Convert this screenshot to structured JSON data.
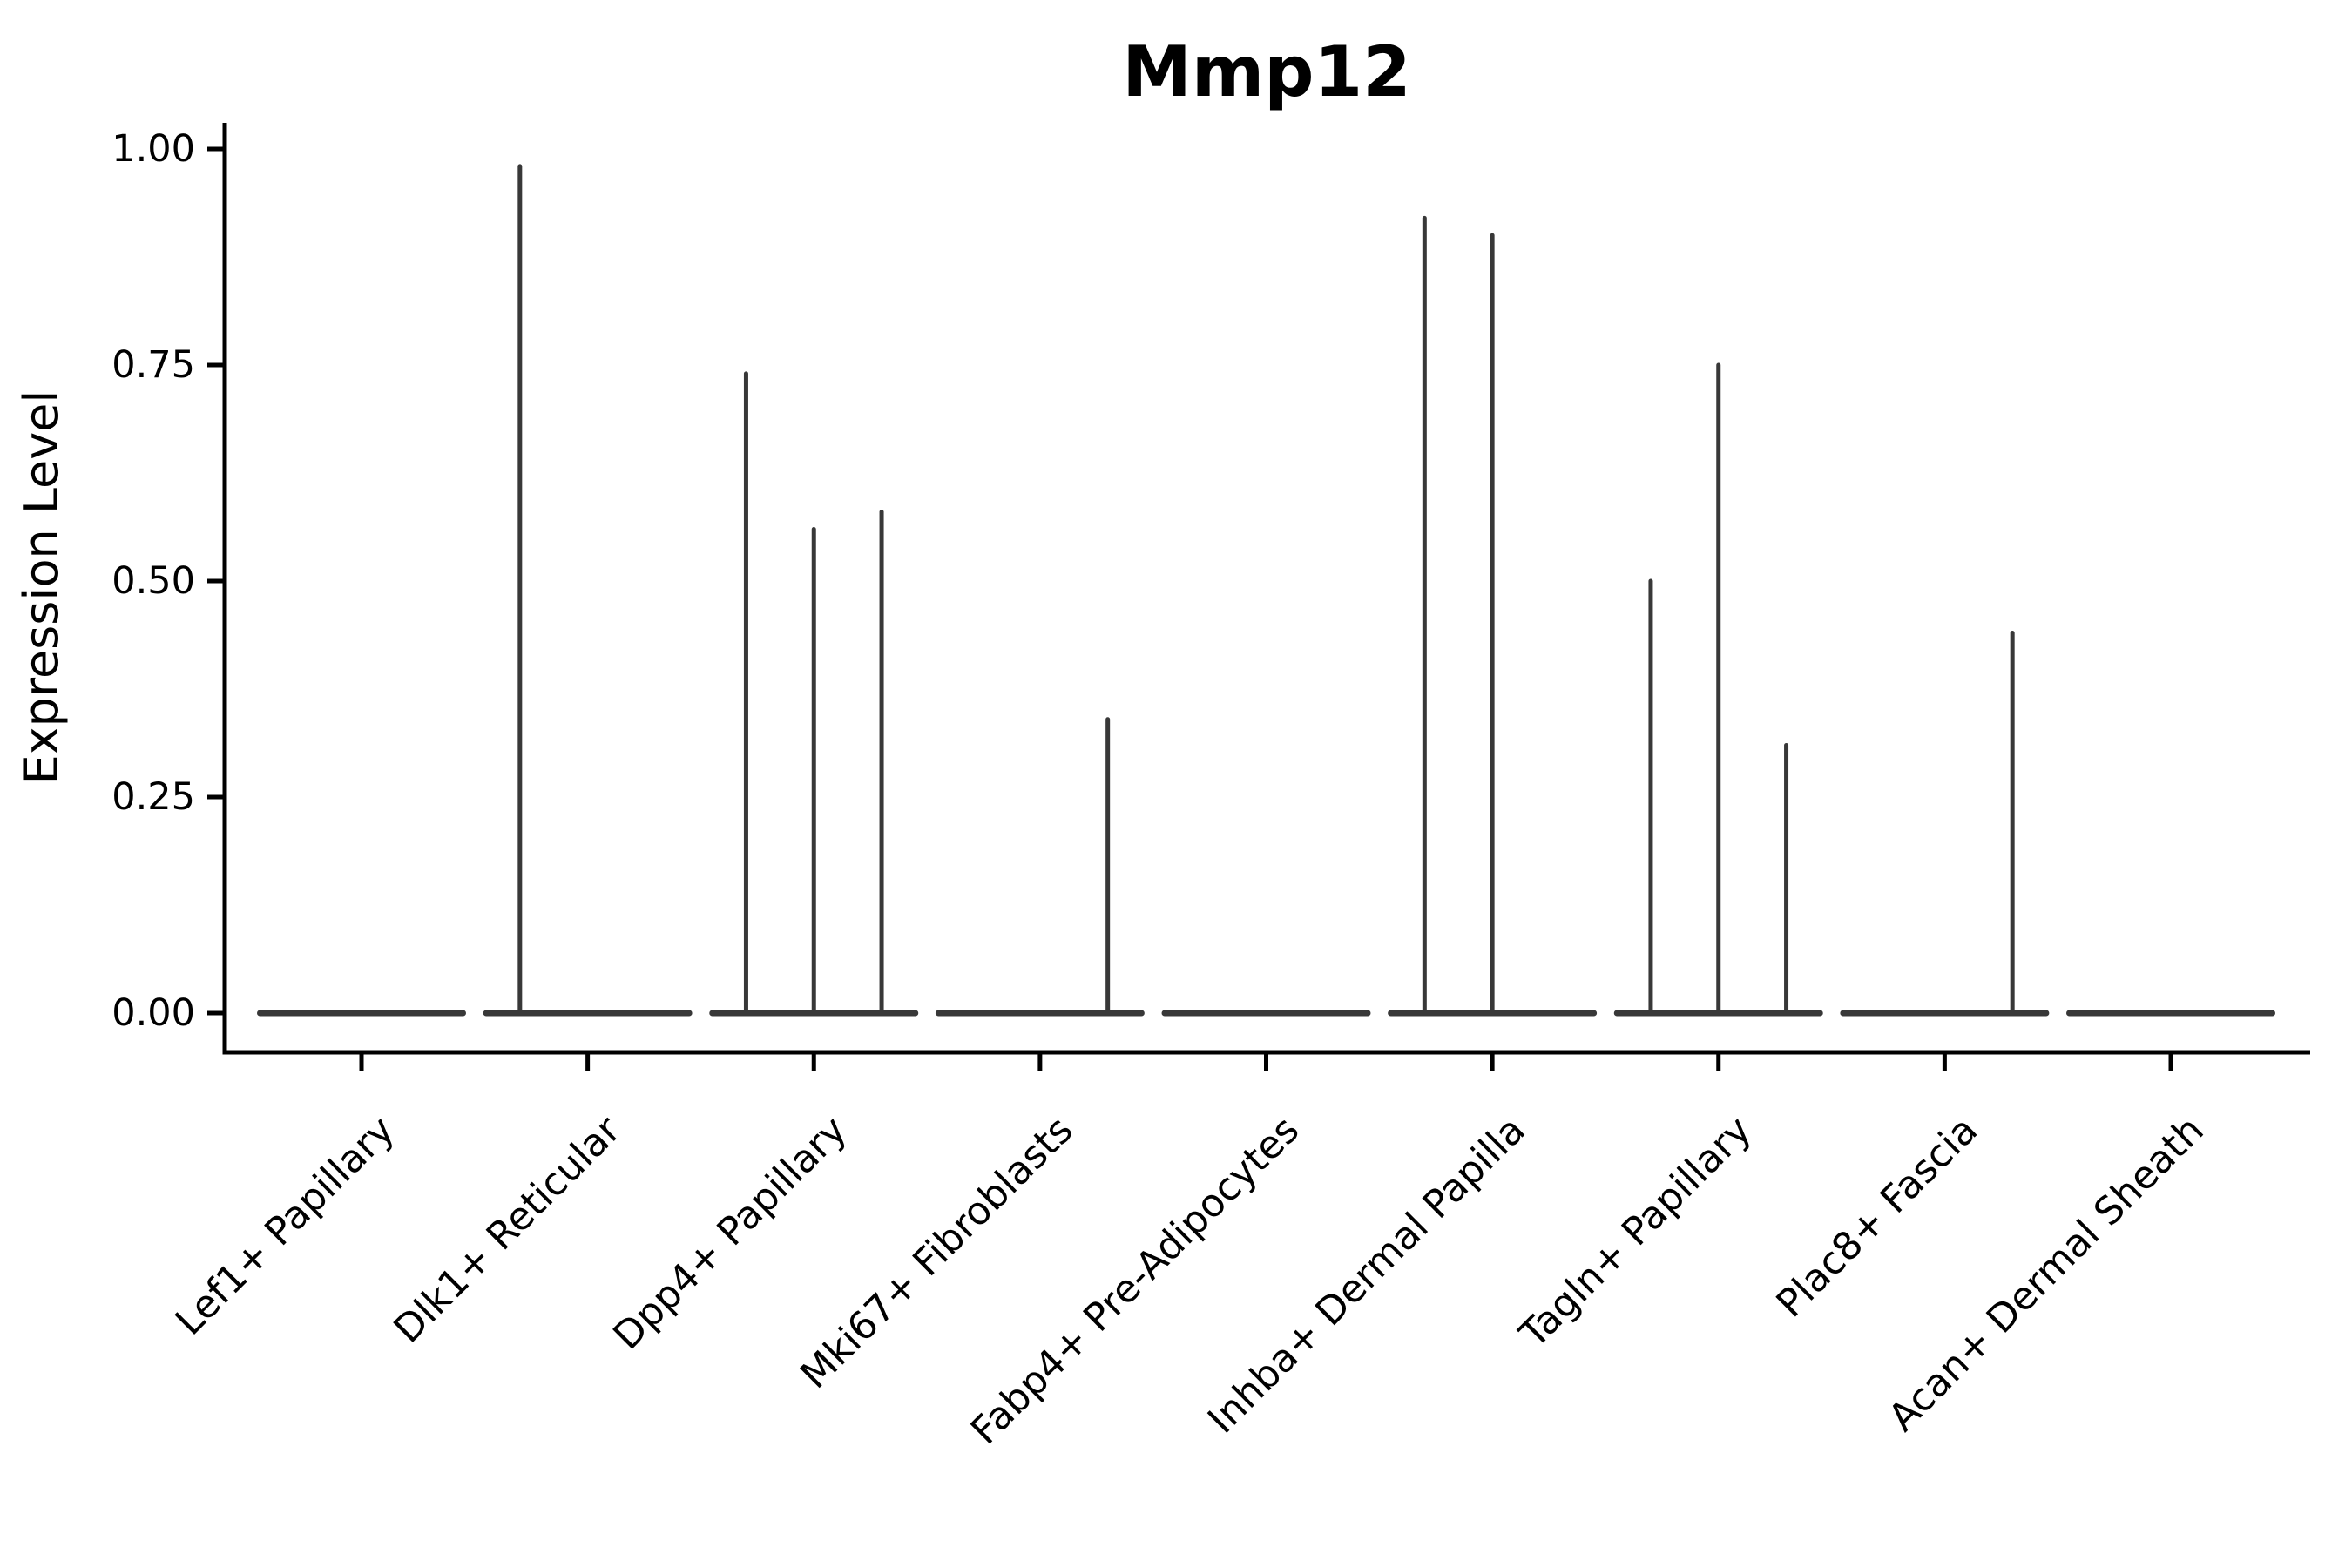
{
  "chart_data": {
    "type": "violin",
    "title": "Mmp12",
    "xlabel": "",
    "ylabel": "Expression Level",
    "ylim": [
      0,
      1.03
    ],
    "yticks": [
      0,
      0.25,
      0.5,
      0.75,
      1.0
    ],
    "ytick_labels": [
      "0.00",
      "0.25",
      "0.50",
      "0.75",
      "1.00"
    ],
    "grid": "off",
    "legend": "none",
    "categories": [
      "Lef1+ Papillary",
      "Dlk1+ Reticular",
      "Dpp4+ Papillary",
      "Mki67+ Fibroblasts",
      "Fabp4+ Pre-Adipocytes",
      "Inhba+ Dermal Papilla",
      "Tagln+ Papillary",
      "Plac8+ Fascia",
      "Acan+ Dermal Sheath"
    ],
    "subviolins_per_category": 3,
    "violins": [
      {
        "category": "Lef1+ Papillary",
        "spike_max_values": [
          0,
          0,
          0
        ]
      },
      {
        "category": "Dlk1+ Reticular",
        "spike_max_values": [
          0.98,
          0,
          0
        ]
      },
      {
        "category": "Dpp4+ Papillary",
        "spike_max_values": [
          0.74,
          0.56,
          0.58
        ]
      },
      {
        "category": "Mki67+ Fibroblasts",
        "spike_max_values": [
          0,
          0,
          0.34
        ]
      },
      {
        "category": "Fabp4+ Pre-Adipocytes",
        "spike_max_values": [
          0,
          0,
          0
        ]
      },
      {
        "category": "Inhba+ Dermal Papilla",
        "spike_max_values": [
          0.92,
          0.9,
          0
        ]
      },
      {
        "category": "Tagln+ Papillary",
        "spike_max_values": [
          0.5,
          0.75,
          0.31
        ]
      },
      {
        "category": "Plac8+ Fascia",
        "spike_max_values": [
          0,
          0,
          0.44
        ]
      },
      {
        "category": "Acan+ Dermal Sheath",
        "spike_max_values": [
          0,
          0,
          0
        ]
      }
    ],
    "colors": {
      "violin_line": "#383838",
      "axis": "#000000",
      "text": "#000000",
      "background": "#ffffff"
    }
  }
}
